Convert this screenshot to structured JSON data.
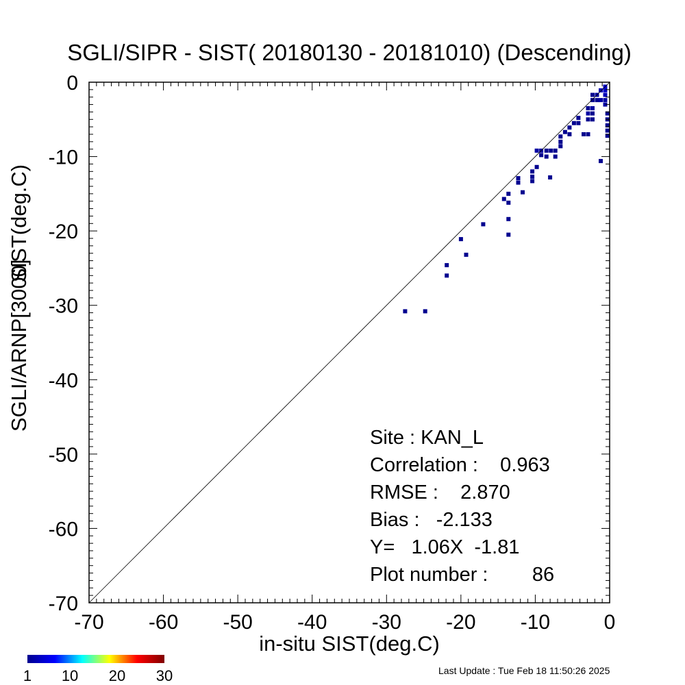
{
  "chart_data": {
    "type": "scatter",
    "title": "SGLI/SIPR - SIST( 20180130 - 20181010) (Descending)",
    "xlabel": "in-situ SIST(deg.C)",
    "ylabel_lines": [
      "SGLI/ARNP[3000]",
      "SIST(deg.C)"
    ],
    "xlim": [
      -70,
      0
    ],
    "ylim": [
      -70,
      0
    ],
    "x_ticks": [
      -70,
      -60,
      -50,
      -40,
      -30,
      -20,
      -10,
      0
    ],
    "y_ticks": [
      0,
      -10,
      -20,
      -30,
      -40,
      -50,
      -60,
      -70
    ],
    "reference_line": "1:1",
    "grid": false,
    "points": [
      {
        "x": -27.5,
        "y": -30.8,
        "count": 1
      },
      {
        "x": -24.8,
        "y": -30.8,
        "count": 1
      },
      {
        "x": -21.9,
        "y": -24.6,
        "count": 1
      },
      {
        "x": -21.9,
        "y": -26.0,
        "count": 1
      },
      {
        "x": -20.0,
        "y": -21.1,
        "count": 1
      },
      {
        "x": -19.3,
        "y": -23.2,
        "count": 1
      },
      {
        "x": -17.0,
        "y": -19.1,
        "count": 1
      },
      {
        "x": -14.2,
        "y": -15.7,
        "count": 1
      },
      {
        "x": -13.6,
        "y": -15.0,
        "count": 1
      },
      {
        "x": -13.6,
        "y": -16.2,
        "count": 1
      },
      {
        "x": -13.6,
        "y": -18.4,
        "count": 1
      },
      {
        "x": -13.6,
        "y": -20.5,
        "count": 1
      },
      {
        "x": -12.3,
        "y": -12.9,
        "count": 1
      },
      {
        "x": -12.3,
        "y": -13.5,
        "count": 1
      },
      {
        "x": -11.7,
        "y": -14.8,
        "count": 1
      },
      {
        "x": -10.4,
        "y": -12.0,
        "count": 1
      },
      {
        "x": -10.4,
        "y": -12.7,
        "count": 1
      },
      {
        "x": -10.4,
        "y": -13.3,
        "count": 1
      },
      {
        "x": -9.8,
        "y": -11.4,
        "count": 1
      },
      {
        "x": -9.8,
        "y": -9.2,
        "count": 2
      },
      {
        "x": -9.2,
        "y": -9.8,
        "count": 1
      },
      {
        "x": -9.2,
        "y": -9.2,
        "count": 2
      },
      {
        "x": -8.5,
        "y": -9.2,
        "count": 1
      },
      {
        "x": -8.5,
        "y": -10.0,
        "count": 1
      },
      {
        "x": -8.0,
        "y": -12.8,
        "count": 1
      },
      {
        "x": -7.9,
        "y": -9.2,
        "count": 1
      },
      {
        "x": -7.3,
        "y": -9.2,
        "count": 1
      },
      {
        "x": -7.3,
        "y": -10.0,
        "count": 1
      },
      {
        "x": -6.6,
        "y": -7.3,
        "count": 1
      },
      {
        "x": -6.6,
        "y": -8.0,
        "count": 1
      },
      {
        "x": -6.6,
        "y": -8.6,
        "count": 1
      },
      {
        "x": -6.0,
        "y": -6.7,
        "count": 1
      },
      {
        "x": -5.4,
        "y": -6.1,
        "count": 1
      },
      {
        "x": -5.4,
        "y": -7.0,
        "count": 1
      },
      {
        "x": -4.8,
        "y": -5.5,
        "count": 1
      },
      {
        "x": -4.2,
        "y": -4.8,
        "count": 1
      },
      {
        "x": -4.2,
        "y": -5.5,
        "count": 1
      },
      {
        "x": -3.5,
        "y": -7.0,
        "count": 1
      },
      {
        "x": -2.9,
        "y": -3.5,
        "count": 1
      },
      {
        "x": -2.9,
        "y": -4.2,
        "count": 2
      },
      {
        "x": -2.9,
        "y": -5.0,
        "count": 1
      },
      {
        "x": -2.9,
        "y": -7.0,
        "count": 1
      },
      {
        "x": -2.3,
        "y": -1.7,
        "count": 1
      },
      {
        "x": -2.3,
        "y": -2.4,
        "count": 1
      },
      {
        "x": -2.3,
        "y": -3.5,
        "count": 2
      },
      {
        "x": -2.3,
        "y": -4.2,
        "count": 1
      },
      {
        "x": -2.3,
        "y": -5.0,
        "count": 1
      },
      {
        "x": -1.7,
        "y": -1.7,
        "count": 2
      },
      {
        "x": -1.7,
        "y": -2.4,
        "count": 1
      },
      {
        "x": -1.2,
        "y": -1.1,
        "count": 3
      },
      {
        "x": -1.2,
        "y": -2.4,
        "count": 2
      },
      {
        "x": -1.2,
        "y": -10.6,
        "count": 1
      },
      {
        "x": -0.6,
        "y": -0.6,
        "count": 4
      },
      {
        "x": -0.6,
        "y": -1.1,
        "count": 4
      },
      {
        "x": -0.6,
        "y": -1.7,
        "count": 3
      },
      {
        "x": -0.6,
        "y": -2.4,
        "count": 2
      },
      {
        "x": -0.6,
        "y": -3.0,
        "count": 2
      },
      {
        "x": -0.3,
        "y": -4.2,
        "count": 1
      },
      {
        "x": -0.3,
        "y": -5.0,
        "count": 1
      },
      {
        "x": -0.3,
        "y": -5.8,
        "count": 1
      },
      {
        "x": -0.3,
        "y": -6.5,
        "count": 1
      },
      {
        "x": -0.3,
        "y": -7.2,
        "count": 1
      }
    ],
    "colorbar": {
      "tick_labels": [
        "1",
        "10",
        "20",
        "30"
      ],
      "range": [
        1,
        30
      ],
      "colors": [
        "#00008f",
        "#0000ff",
        "#00ffff",
        "#ffff00",
        "#ff0000",
        "#800000"
      ]
    }
  },
  "stats": [
    "Site : KAN_L",
    "Correlation :    0.963",
    "RMSE :    2.870",
    "Bias :   -2.133",
    "Y=   1.06X  -1.81",
    "Plot number :        86"
  ],
  "last_update": "Last Update : Tue Feb 18 11:50:26 2025"
}
